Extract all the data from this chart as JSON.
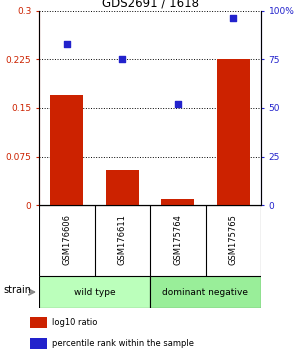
{
  "title": "GDS2691 / 1618",
  "categories": [
    "GSM176606",
    "GSM176611",
    "GSM175764",
    "GSM175765"
  ],
  "log10_ratio": [
    0.17,
    0.055,
    0.01,
    0.225
  ],
  "percentile_rank": [
    83,
    75,
    52,
    96
  ],
  "bar_color": "#cc2200",
  "dot_color": "#2222cc",
  "ylim_left": [
    0,
    0.3
  ],
  "ylim_right": [
    0,
    100
  ],
  "yticks_left": [
    0,
    0.075,
    0.15,
    0.225,
    0.3
  ],
  "yticks_right": [
    0,
    25,
    50,
    75,
    100
  ],
  "ytick_labels_left": [
    "0",
    "0.075",
    "0.15",
    "0.225",
    "0.3"
  ],
  "ytick_labels_right": [
    "0",
    "25",
    "50",
    "75",
    "100%"
  ],
  "groups": [
    {
      "label": "wild type",
      "indices": [
        0,
        1
      ],
      "color": "#bbffbb"
    },
    {
      "label": "dominant negative",
      "indices": [
        2,
        3
      ],
      "color": "#99ee99"
    }
  ],
  "strain_label": "strain",
  "legend_items": [
    {
      "color": "#cc2200",
      "label": "log10 ratio"
    },
    {
      "color": "#2222cc",
      "label": "percentile rank within the sample"
    }
  ],
  "background_color": "#ffffff",
  "plot_bg_color": "#ffffff",
  "sample_area_color": "#cccccc"
}
